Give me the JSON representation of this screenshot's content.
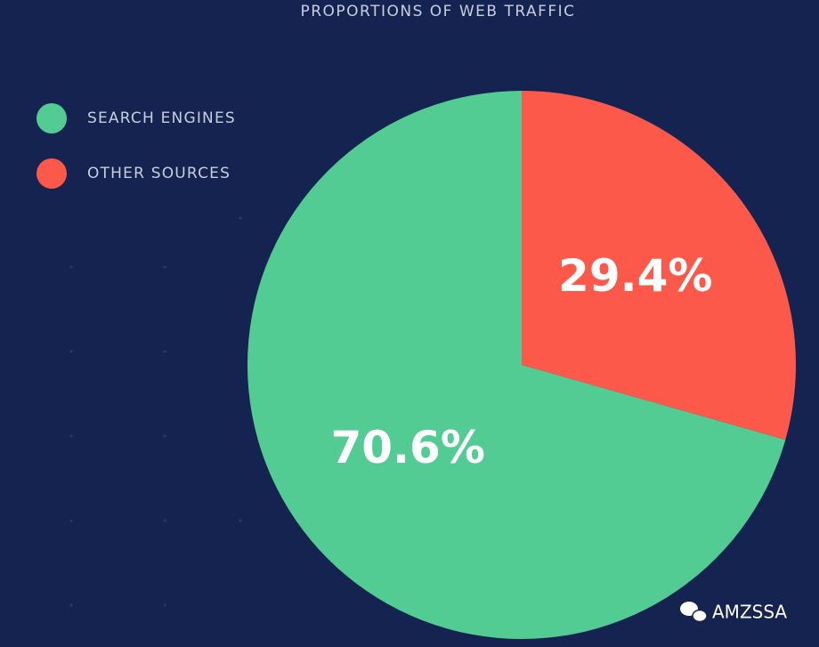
{
  "chart_data": {
    "type": "pie",
    "title": "PROPORTIONS OF WEB TRAFFIC",
    "series": [
      {
        "name": "SEARCH ENGINES",
        "color": "#52cc93",
        "values": [
          70.6
        ],
        "value_labels": [
          "70.6%"
        ]
      },
      {
        "name": "OTHER SOURCES",
        "color": "#fd594b",
        "values": [
          29.4
        ],
        "value_labels": [
          "29.4%"
        ]
      }
    ]
  },
  "watermark": "AMZSSA"
}
